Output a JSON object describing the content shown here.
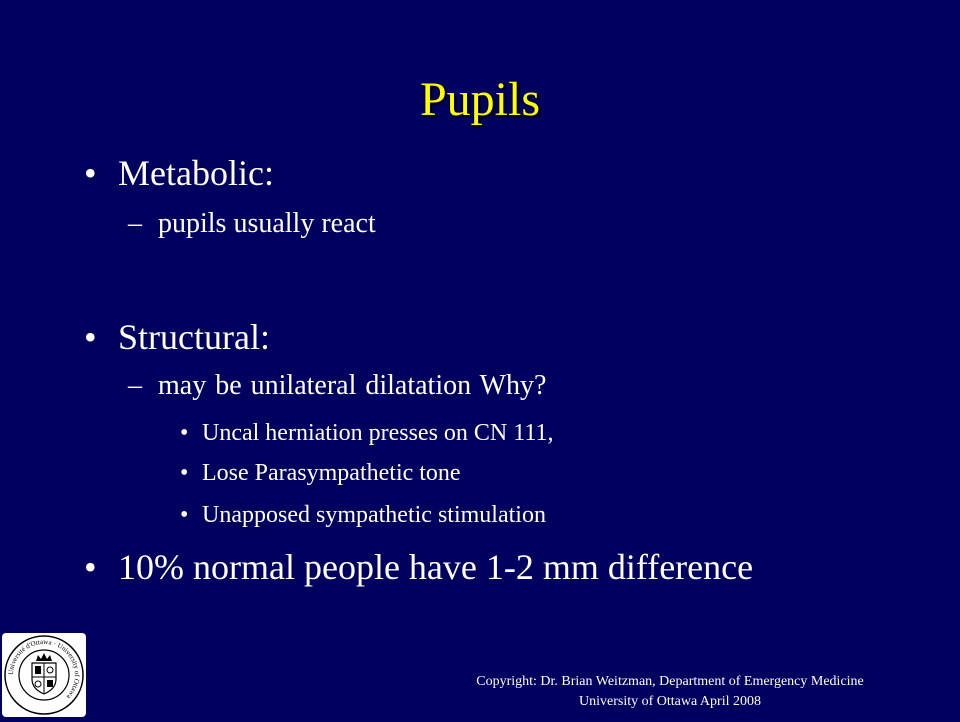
{
  "slide": {
    "title": "Pupils",
    "bullets": {
      "metabolic": "Metabolic:",
      "metabolic_sub": "pupils usually react",
      "structural": "Structural:",
      "structural_sub": "may be unilateral dilatation Why?",
      "structural_items": [
        "Uncal herniation presses on CN 111,",
        "Lose Parasympathetic tone",
        "Unapposed sympathetic stimulation"
      ],
      "normal": "10% normal people have 1-2 mm difference"
    },
    "marks": {
      "bullet": "•",
      "dash": "–"
    }
  },
  "footer": {
    "copyright": "Copyright: Dr. Brian Weitzman, Department of Emergency Medicine",
    "institution": "University of Ottawa April 2008"
  },
  "logo": {
    "icon": "university-of-ottawa-seal-icon",
    "text": "Université d'Ottawa · University of Ottawa"
  },
  "colors": {
    "background": "#00005e",
    "title": "#ffff00",
    "text": "#ffffff"
  }
}
